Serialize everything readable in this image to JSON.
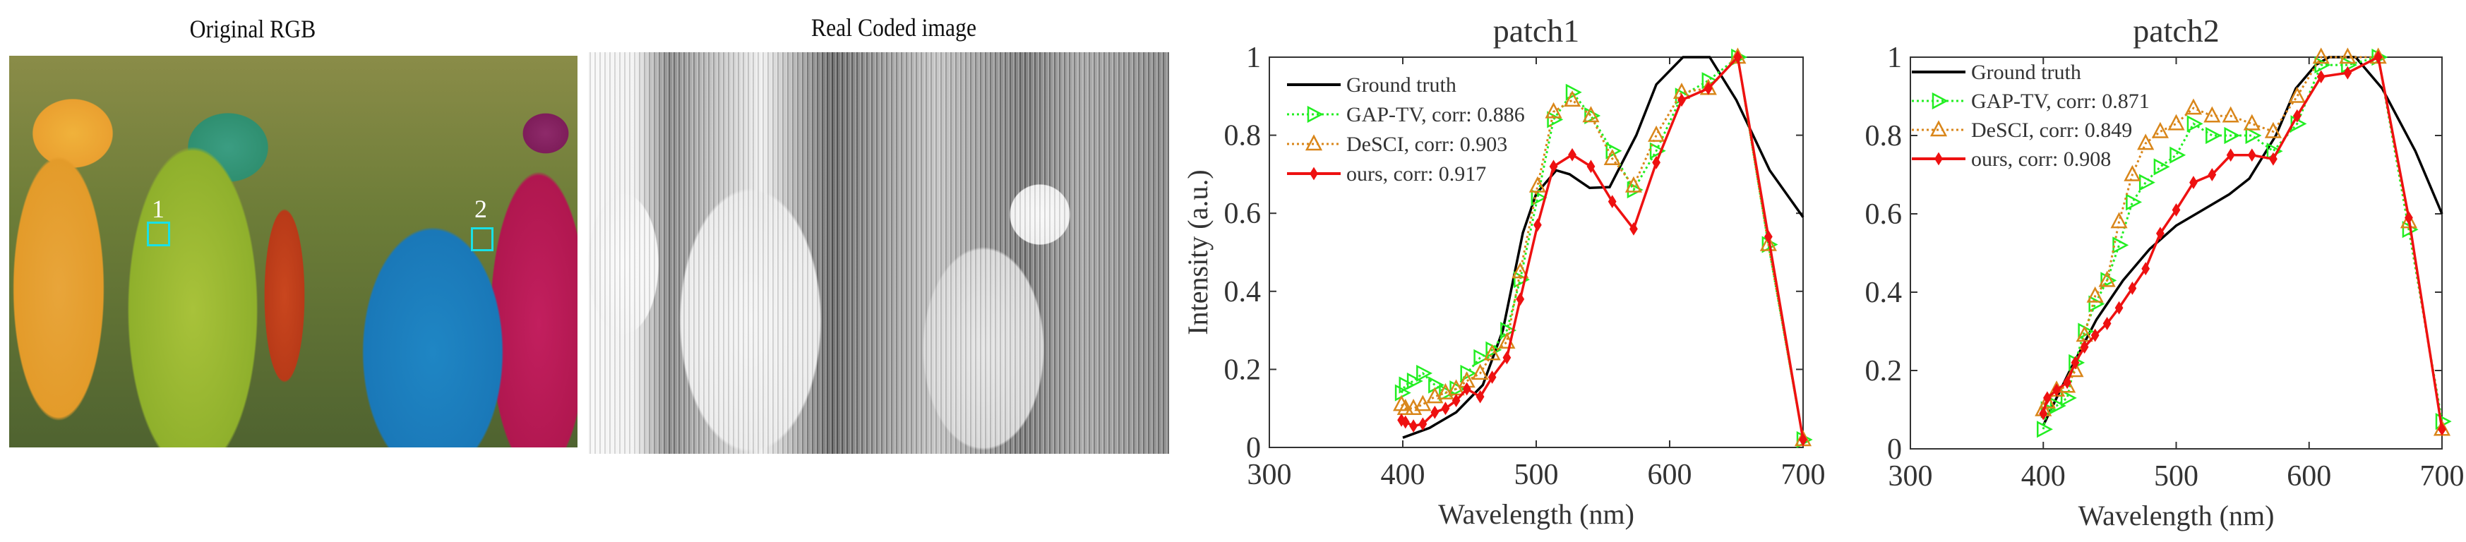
{
  "panels": {
    "original_title": "Original RGB",
    "coded_title": "Real Coded image",
    "patch_labels": [
      "1",
      "2"
    ],
    "patch_box_color": "#19e0e6"
  },
  "chart_data": [
    {
      "type": "line",
      "title": "patch1",
      "xlabel": "Wavelength (nm)",
      "ylabel": "Intensity (a.u.)",
      "xlim": [
        300,
        700
      ],
      "ylim": [
        0,
        1
      ],
      "xticks": [
        "300",
        "400",
        "500",
        "600",
        "700"
      ],
      "yticks": [
        "0",
        "0.2",
        "0.4",
        "0.6",
        "0.8",
        "1"
      ],
      "legend_position": "top-left",
      "grid": false,
      "series": [
        {
          "name": "Ground truth",
          "color": "#000000",
          "marker": "none",
          "dash": "solid",
          "x": [
            400,
            420,
            440,
            460,
            475,
            490,
            500,
            515,
            525,
            540,
            555,
            575,
            590,
            610,
            630,
            650,
            675,
            700
          ],
          "y": [
            0.025,
            0.05,
            0.09,
            0.16,
            0.3,
            0.55,
            0.65,
            0.71,
            0.7,
            0.665,
            0.667,
            0.8,
            0.93,
            1.0,
            1.0,
            0.89,
            0.71,
            0.59
          ]
        },
        {
          "name": "GAP-TV, corr: 0.886",
          "color": "#22ee22",
          "marker": "triangle-right",
          "dash": "dotted",
          "x": [
            399,
            402,
            408,
            415,
            424,
            432,
            440,
            448,
            458,
            467,
            478,
            488,
            501,
            513,
            527,
            541,
            557,
            573,
            590,
            609,
            629,
            651,
            674,
            700
          ],
          "y": [
            0.14,
            0.16,
            0.17,
            0.19,
            0.16,
            0.14,
            0.15,
            0.19,
            0.23,
            0.25,
            0.3,
            0.43,
            0.64,
            0.84,
            0.91,
            0.85,
            0.76,
            0.66,
            0.76,
            0.9,
            0.94,
            1.0,
            0.52,
            0.02
          ]
        },
        {
          "name": "DeSCI, corr: 0.903",
          "color": "#d9861a",
          "marker": "triangle-up",
          "dash": "dotted",
          "x": [
            399,
            402,
            408,
            415,
            424,
            432,
            440,
            448,
            458,
            467,
            478,
            488,
            501,
            513,
            527,
            541,
            557,
            573,
            590,
            609,
            629,
            651,
            674,
            700
          ],
          "y": [
            0.11,
            0.1,
            0.1,
            0.11,
            0.13,
            0.14,
            0.15,
            0.17,
            0.19,
            0.24,
            0.27,
            0.45,
            0.67,
            0.86,
            0.89,
            0.85,
            0.74,
            0.67,
            0.8,
            0.91,
            0.92,
            1.0,
            0.52,
            0.02
          ]
        },
        {
          "name": "ours, corr: 0.917",
          "color": "#ee1111",
          "marker": "diamond",
          "dash": "solid",
          "x": [
            399,
            402,
            408,
            415,
            424,
            432,
            440,
            448,
            458,
            467,
            478,
            488,
            501,
            513,
            527,
            541,
            557,
            573,
            590,
            609,
            629,
            651,
            674,
            700
          ],
          "y": [
            0.07,
            0.065,
            0.055,
            0.06,
            0.09,
            0.1,
            0.12,
            0.15,
            0.13,
            0.18,
            0.23,
            0.38,
            0.57,
            0.72,
            0.75,
            0.72,
            0.63,
            0.56,
            0.73,
            0.89,
            0.92,
            1.0,
            0.54,
            0.02
          ]
        }
      ]
    },
    {
      "type": "line",
      "title": "patch2",
      "xlabel": "Wavelength (nm)",
      "ylabel": "",
      "xlim": [
        300,
        700
      ],
      "ylim": [
        0,
        1
      ],
      "xticks": [
        "300",
        "400",
        "500",
        "600",
        "700"
      ],
      "yticks": [
        "0",
        "0.2",
        "0.4",
        "0.6",
        "0.8",
        "1"
      ],
      "legend_position": "top-left",
      "grid": false,
      "series": [
        {
          "name": "Ground truth",
          "color": "#000000",
          "marker": "none",
          "dash": "solid",
          "x": [
            400,
            420,
            440,
            460,
            480,
            500,
            520,
            540,
            555,
            575,
            590,
            605,
            615,
            635,
            655,
            680,
            700
          ],
          "y": [
            0.06,
            0.2,
            0.33,
            0.43,
            0.51,
            0.57,
            0.61,
            0.65,
            0.69,
            0.8,
            0.92,
            0.98,
            1.0,
            1.0,
            0.92,
            0.76,
            0.6
          ]
        },
        {
          "name": "GAP-TV, corr: 0.871",
          "color": "#22ee22",
          "marker": "triangle-right",
          "dash": "dotted",
          "x": [
            400,
            403,
            410,
            418,
            424,
            431,
            439,
            448,
            457,
            467,
            477,
            488,
            500,
            513,
            527,
            541,
            557,
            573,
            591,
            609,
            629,
            652,
            675,
            700
          ],
          "y": [
            0.05,
            0.1,
            0.11,
            0.13,
            0.22,
            0.3,
            0.37,
            0.43,
            0.52,
            0.63,
            0.68,
            0.72,
            0.75,
            0.83,
            0.8,
            0.8,
            0.8,
            0.76,
            0.83,
            0.98,
            0.98,
            1.0,
            0.56,
            0.07
          ]
        },
        {
          "name": "DeSCI, corr: 0.849",
          "color": "#d9861a",
          "marker": "triangle-up",
          "dash": "dotted",
          "x": [
            400,
            403,
            410,
            418,
            424,
            431,
            439,
            448,
            457,
            467,
            477,
            488,
            500,
            513,
            527,
            541,
            557,
            573,
            591,
            609,
            629,
            652,
            675,
            700
          ],
          "y": [
            0.1,
            0.12,
            0.15,
            0.16,
            0.2,
            0.29,
            0.39,
            0.43,
            0.58,
            0.7,
            0.78,
            0.81,
            0.83,
            0.87,
            0.85,
            0.85,
            0.83,
            0.81,
            0.9,
            1.0,
            1.0,
            1.0,
            0.58,
            0.05
          ]
        },
        {
          "name": "ours, corr: 0.908",
          "color": "#ee1111",
          "marker": "diamond",
          "dash": "solid",
          "x": [
            400,
            403,
            410,
            418,
            424,
            431,
            439,
            448,
            457,
            467,
            477,
            488,
            500,
            513,
            527,
            541,
            557,
            573,
            591,
            609,
            629,
            652,
            675,
            700
          ],
          "y": [
            0.09,
            0.13,
            0.15,
            0.17,
            0.22,
            0.26,
            0.29,
            0.32,
            0.36,
            0.41,
            0.46,
            0.55,
            0.61,
            0.68,
            0.7,
            0.75,
            0.75,
            0.74,
            0.85,
            0.95,
            0.96,
            1.0,
            0.59,
            0.05
          ]
        }
      ]
    }
  ]
}
